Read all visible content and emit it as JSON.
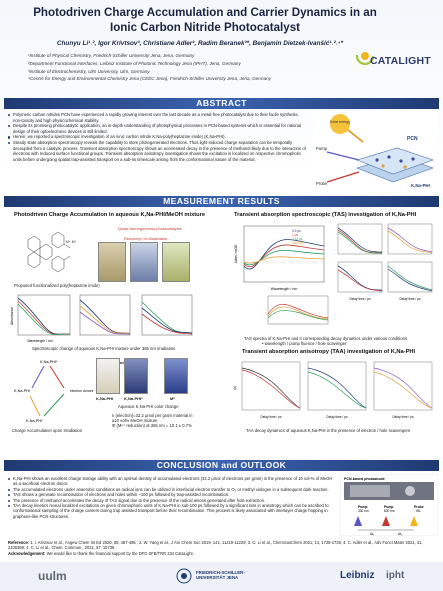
{
  "header": {
    "title_line1": "Photodriven Charge Accumulation and Carrier Dynamics in an",
    "title_line2": "Ionic Carbon Nitride Photocatalyst",
    "authors": "Chunyu Li¹˒², Igor Krivtsov³, Christiane Adler², Radim Beranek³*, Benjamin Dietzek-Ivanšić¹˒²˒⁴*",
    "affiliations": [
      "¹Institute of Physical Chemistry, Friedrich-Schiller University Jena, Jena, Germany",
      "²Department Functional Interfaces, Leibniz Institute of Photonic Technology Jena (IPHT), Jena, Germany",
      "³Institute of Electrochemistry, Ulm University, Ulm, Germany",
      "⁴Centre for Energy and Environmental Chemistry Jena (CEEC Jena), Friedrich-Schiller University Jena, Jena, Germany"
    ],
    "logo_text": "CATALIGHT"
  },
  "sections": {
    "abstract": "ABSTRACT",
    "measurement": "MEASUREMENT RESULTS",
    "conclusion": "CONCLUSION and OUTLOOK"
  },
  "abstract_items": [
    "Polymeric carbon nitrides PCN have experienced a rapidly growing interest over the last decade as a metal-free photocatalyst due to their facile synthesis, non-toxicity and high physicochemical stability.",
    "Despite its promising photocatalytic application, an in-depth understanding of photophysical processes in PCN-based systems which is essential for rational design of their optoelectronic devices is still limited.",
    "Herein, we reported a spectroscopic investigation of an ionic carbon nitride K,Na-poly(heptazine imide) (K,Na-PHI).",
    "Steady state absorption spectroscopy reveals the capability to store photogenerated electrons. Thus light-induced charge separation can be temporally decoupled from a catalytic process. Transient absorption spectroscopy shows an accelerated decay in the presence of methanol likely due to the interaction of electrons with reduced surface functional groups. Transient absorption anisotropy investigation shows the excitation is localized on respective chromophoric units before undergoing spatial trap-assisted transport on a sub-ns timescale arising from the conformational nature of the material."
  ],
  "abstract_figure": {
    "label_solar": "Solar energy",
    "label_pump": "Pump",
    "label_probe": "Probe",
    "label_pcn": "PCN",
    "label_knaphi": "K,Na-PHI"
  },
  "left_panel": {
    "title": "Photodriven Charge Accumulation in aqueous K,Na-PHI/MeOH mixture",
    "structure_caption": "Proposed functionalized poly(heptazine imide)",
    "photo_caption_1": "Quasi-homogeneous photocatalysis",
    "photo_caption_2": "Recovery / re-illustration",
    "spectro_caption": "Spectroscopic change of aqueous K,Na-PHI mixture under 365 nm irradiation",
    "abs_ylabel": "Absorbance",
    "abs_xlabel": "Wavelength / nm",
    "accum_label": "Charge Accumulation upon Irradiation",
    "accum_top": "K,Na-PHI*",
    "accum_left": "K,Na-PHI",
    "accum_bottom": "K,Na-PHI⁻",
    "accum_donor": "electron donors",
    "vial_labels": [
      "K,Na-PHI",
      "K,Na-PHI*",
      "Mᵉ"
    ],
    "vial_top": [
      "365 nm",
      "dark"
    ],
    "vial_top2": [
      "24 h",
      "Mᵉ⁺"
    ],
    "color_caption": "Aqueous K,Na-PHI color change",
    "calc_line1": "n (electron)=32.2 μmol per gram material in",
    "calc_line2": "a10 vol% MeOH mixture",
    "calc_line3": "Φ (Mᵉ⁺ reduction) at 365 nm = 10.1 ± 0.7%"
  },
  "right_panel": {
    "tas_title": "Transient absorption spectroscopic (TAS) investigation of K,Na-PHI",
    "tas_caption_1": "TAS spectra of K,Na-PHI and it corresponding decay dynamics under various conditions",
    "tas_caption_2": "• wavelength / pump fluence / hole scavenger",
    "tas_xlabel": "Wavelength / nm",
    "tas_ylabel": "ΔAbs / mOD",
    "decay_xlabel": "Delay time / ps",
    "taa_title": "Transient absorption anisotropy (TAA) investigation of K,Na-PHI",
    "taa_caption": "TAA decay dynamics of aqueous K,Na-PHI in the presence of electron / hole scavengers",
    "taa_ylabel": "r(t)",
    "legend_delays": [
      "0.3 ps",
      "1 ps",
      "3.12 ps",
      "1400 ps"
    ]
  },
  "conclusion_items": [
    "K,Na-PHI shows an excellent charge storage ability with an optimal density of accumulated electrons (32.2 μmol of electrons per gram) in the presence of 10 vol-% of MeOH as a sacrificial electron donor.",
    "The accumulated electrons under anaerobic conditions as radical ions can be utilized in interfacial electron transfer to O₂ or methyl viologen in a subsequent dark reaction.",
    "TAS shows a geminate recombination of electrons and holes within ~100 ps followed by trap-assisted recombination.",
    "The presence of methanol accelerates the decay of TAS signal due to the presence of the radical anions generated after hole extraction.",
    "TAA decay kinetics reveal localized excitations on given chromophoric units of K,Na-PHI in sub-100 ps followed by a significant loss in anisotropy which can be ascribed to conformational sampling of the charge carriers during trap assisted transport before their recombination. This process is likely associated with interlayer charge hopping in graphene-like PCN structures."
  ],
  "outlook_figure": {
    "title": "PCN-based photoanode",
    "pump1": "Pump",
    "pump1_wl": "330 nm",
    "pump2": "Pump",
    "pump2_wl": "800 nm",
    "probe": "Probe",
    "probe_wl": "WL",
    "dt1": "Δt₁",
    "dt2": "Δt₂"
  },
  "references": {
    "label": "Reference:",
    "text": "1. I. Krivtsov et al., Angew Chem Int Ed 2020, 59, 487-495 ; 2. W. Yang et al., J Am Chem Soc 2019, 141, 11219-11229; 3. C. Li et al., ChemSusChem 2021, 14, 1728-1736; 4. C. Adler et al., Adv Funct Mater 2021, 31, 2105369; 4. C. Li et al., Chem. Commun., 2021, 57, 10739.",
    "ack_label": "Acknowledgement:",
    "ack_text": "We would like to thank the financial support by the DFG SFB/TRR 234 CataLight."
  },
  "footer": {
    "uulm": "uulm",
    "fsu": "FRIEDRICH-SCHILLER-UNIVERSITÄT JENA",
    "leibniz": "Leibniz",
    "ipht": "ipht"
  },
  "colors": {
    "banner": "#1f3a72",
    "accent": "#3b63b0"
  }
}
